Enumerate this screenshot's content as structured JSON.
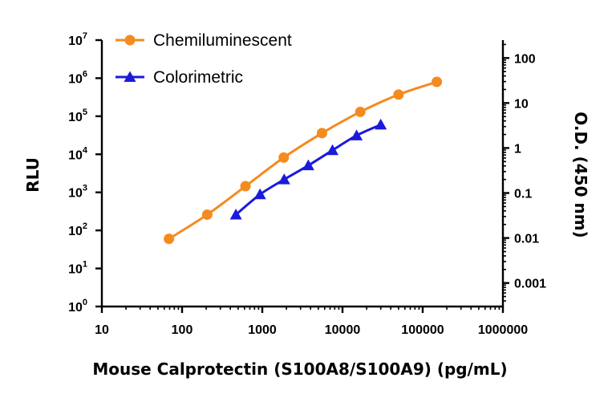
{
  "chart_data": {
    "type": "line",
    "xlabel": "Mouse Calprotectin (S100A8/S100A9) (pg/mL)",
    "ylabel_left": "RLU",
    "ylabel_right": "O.D. (450 nm)",
    "x_scale": "log",
    "x_ticks": [
      "10",
      "100",
      "1000",
      "10000",
      "100000",
      "1000000"
    ],
    "xlim": [
      10,
      1000000
    ],
    "y_left_scale": "log",
    "y_left_ticks": [
      {
        "base": "10",
        "exp": "0"
      },
      {
        "base": "10",
        "exp": "1"
      },
      {
        "base": "10",
        "exp": "2"
      },
      {
        "base": "10",
        "exp": "3"
      },
      {
        "base": "10",
        "exp": "4"
      },
      {
        "base": "10",
        "exp": "5"
      },
      {
        "base": "10",
        "exp": "6"
      },
      {
        "base": "10",
        "exp": "7"
      }
    ],
    "y_left_lim": [
      1,
      10000000
    ],
    "y_right_scale": "log",
    "y_right_ticks": [
      "0.001",
      "0.01",
      "0.1",
      "1",
      "10",
      "100"
    ],
    "y_right_lim": [
      0.0003,
      250
    ],
    "legend_position": "top-left",
    "series": [
      {
        "name": "Chemiluminescent",
        "axis": "left",
        "color": "#f58a1f",
        "marker": "circle",
        "x": [
          68.6,
          206,
          617,
          1852,
          5556,
          16667,
          50000,
          150000
        ],
        "y": [
          60,
          260,
          1450,
          8200,
          36000,
          130000,
          370000,
          800000
        ]
      },
      {
        "name": "Colorimetric",
        "axis": "right",
        "color": "#1a1adb",
        "marker": "triangle",
        "x": [
          469,
          938,
          1875,
          3750,
          7500,
          15000,
          30000
        ],
        "y": [
          0.033,
          0.093,
          0.2,
          0.41,
          0.89,
          1.9,
          3.3
        ]
      }
    ]
  }
}
